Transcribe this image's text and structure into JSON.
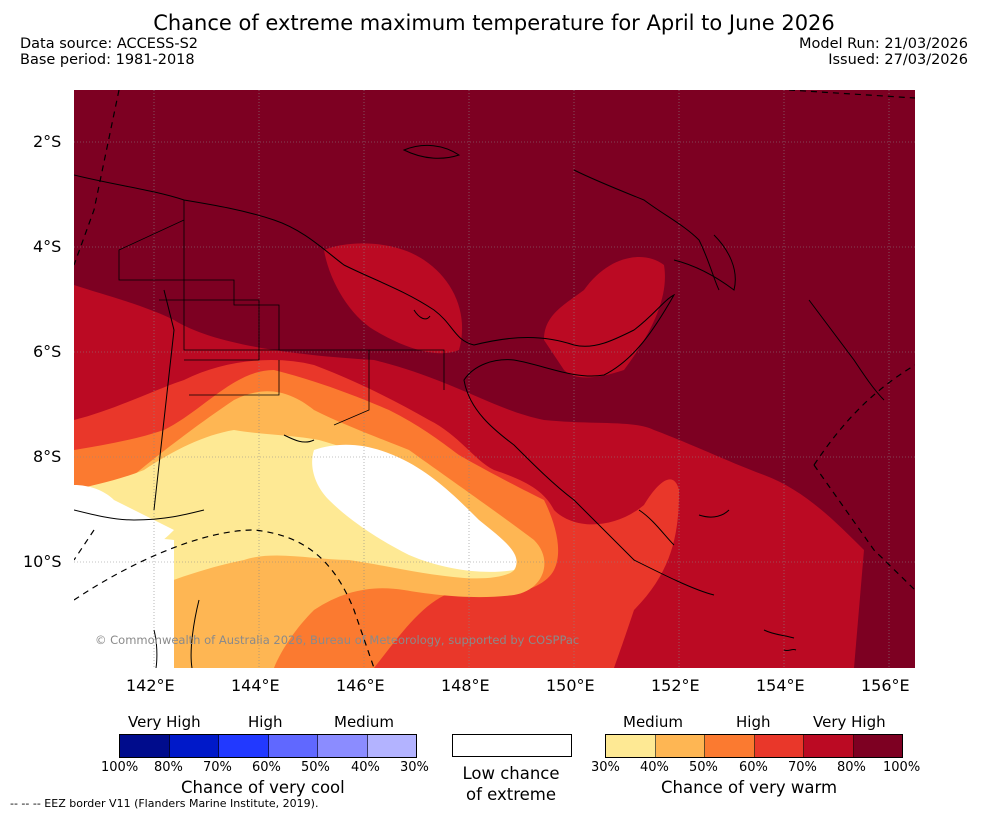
{
  "title": "Chance of extreme maximum temperature for April to June 2026",
  "data_source": "Data source: ACCESS-S2",
  "base_period": "Base period: 1981-2018",
  "model_run": "Model Run: 21/03/2026",
  "issued": "Issued: 27/03/2026",
  "map": {
    "lat_labels": [
      "2°S",
      "4°S",
      "6°S",
      "8°S",
      "10°S"
    ],
    "lon_labels": [
      "142°E",
      "144°E",
      "146°E",
      "148°E",
      "150°E",
      "152°E",
      "154°E",
      "156°E"
    ],
    "copyright": "© Commonwealth of Australia 2026, Bureau of Meteorology, supported by COSPPac",
    "colors": {
      "very_high_80_100": "#7d0022",
      "high_70_80": "#bb0a23",
      "high_60_70": "#e9372a",
      "medium_50_60": "#fb7a30",
      "medium_40_50": "#feb653",
      "medium_30_40": "#fee994",
      "low": "#ffffff"
    }
  },
  "legend": {
    "cool": {
      "heads": [
        "Very High",
        "High",
        "Medium"
      ],
      "colors": [
        "#000c8c",
        "#0019c9",
        "#2239ff",
        "#6068ff",
        "#8b8cff",
        "#b3b3ff"
      ],
      "ticks": [
        "100%",
        "80%",
        "70%",
        "60%",
        "50%",
        "40%",
        "30%"
      ],
      "caption": "Chance of very cool"
    },
    "low": {
      "caption_line1": "Low chance",
      "caption_line2": "of extreme"
    },
    "warm": {
      "heads": [
        "Medium",
        "High",
        "Very High"
      ],
      "colors": [
        "#fee994",
        "#feb653",
        "#fb7a30",
        "#e9372a",
        "#bb0a23",
        "#7d0022"
      ],
      "ticks": [
        "30%",
        "40%",
        "50%",
        "60%",
        "70%",
        "80%",
        "100%"
      ],
      "caption": "Chance of very warm"
    }
  },
  "footnote": "--  --  -- EEZ border V11 (Flanders Marine Institute, 2019)."
}
